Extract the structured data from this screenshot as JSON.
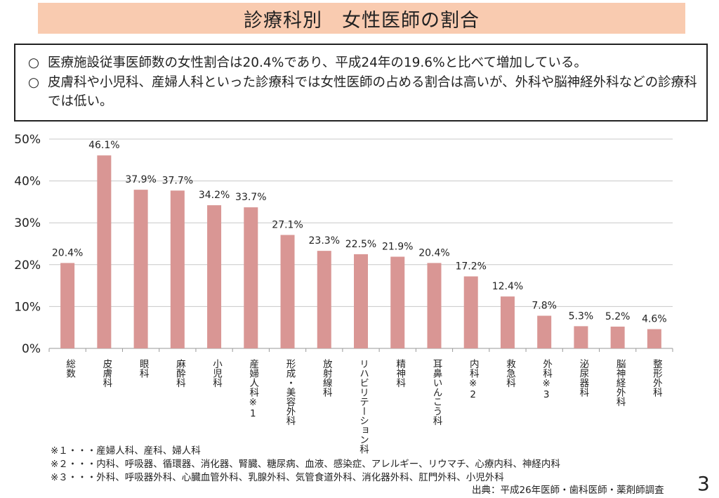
{
  "title": "診療科別　女性医師の割合",
  "summary": {
    "bullets": [
      {
        "mark": "○",
        "text": "医療施設従事医師数の女性割合は20.4%であり、平成24年の19.6%と比べて増加している。"
      },
      {
        "mark": "○",
        "text": "皮膚科や小児科、産婦人科といった診療科では女性医師の占める割合は高いが、外科や脳神経外科などの診療科では低い。"
      }
    ]
  },
  "chart_data": {
    "type": "bar",
    "title": "",
    "xlabel": "",
    "ylabel": "",
    "ylim": [
      0,
      50
    ],
    "yticks": [
      "0%",
      "10%",
      "20%",
      "30%",
      "40%",
      "50%"
    ],
    "grid": true,
    "bar_color": "#d99694",
    "categories": [
      "総数",
      "皮膚科",
      "眼科",
      "麻酔科",
      "小児科",
      "産婦人科※1",
      "形成・美容外科",
      "放射線科",
      "リハビリテーション科",
      "精神科",
      "耳鼻いんこう科",
      "内科※2",
      "救急科",
      "外科※3",
      "泌尿器科",
      "脳神経外科",
      "整形外科"
    ],
    "values": [
      20.4,
      46.1,
      37.9,
      37.7,
      34.2,
      33.7,
      27.1,
      23.3,
      22.5,
      21.9,
      20.4,
      17.2,
      12.4,
      7.8,
      5.3,
      5.2,
      4.6
    ],
    "data_labels": [
      "20.4%",
      "46.1%",
      "37.9%",
      "37.7%",
      "34.2%",
      "33.7%",
      "27.1%",
      "23.3%",
      "22.5%",
      "21.9%",
      "20.4%",
      "17.2%",
      "12.4%",
      "7.8%",
      "5.3%",
      "5.2%",
      "4.6%"
    ]
  },
  "notes": [
    "※１・・・産婦人科、産科、婦人科",
    "※２・・・内科、呼吸器、循環器、消化器、腎臓、糖尿病、血液、感染症、アレルギー、リウマチ、心療内科、神経内科",
    "※３・・・外科、呼吸器外科、心臓血管外科、乳腺外科、気管食道外科、消化器外科、肛門外科、小児外科"
  ],
  "source": "出典：平成26年医師・歯科医師・薬剤師調査",
  "page_number": "3"
}
